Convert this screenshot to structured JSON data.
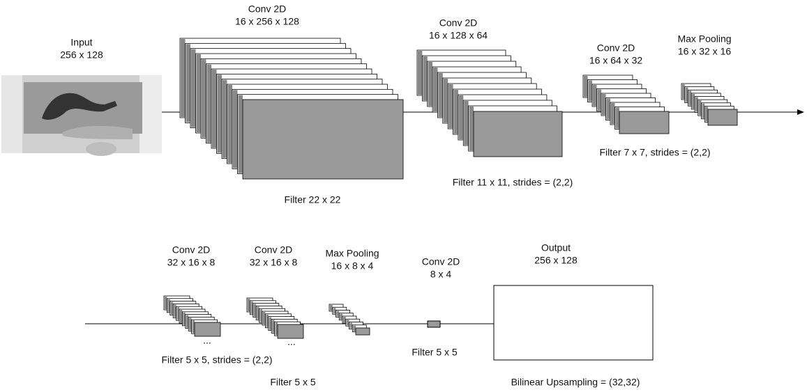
{
  "top_row": [
    {
      "title": "Input",
      "shape": "256 x 128"
    },
    {
      "title": "Conv 2D",
      "shape": "16 x 256 x 128",
      "filter": "Filter 22 x 22"
    },
    {
      "title": "Conv 2D",
      "shape": "16 x 128 x 64",
      "filter": "Filter 11 x 11, strides = (2,2)"
    },
    {
      "title": "Conv 2D",
      "shape": "16 x 64 x 32",
      "filter": "Filter 7 x 7, strides = (2,2)"
    },
    {
      "title": "Max Pooling",
      "shape": "16 x 32 x 16"
    }
  ],
  "bottom_row": [
    {
      "title": "Conv 2D",
      "shape": "32 x 16 x 8",
      "ellipsis": "...",
      "filter": "Filter 5 x 5, strides = (2,2)"
    },
    {
      "title": "Conv 2D",
      "shape": "32 x 16 x 8",
      "ellipsis": "...",
      "filter": "Filter 5 x 5"
    },
    {
      "title": "Max Pooling",
      "shape": "16 x 8 x 4"
    },
    {
      "title": "Conv 2D",
      "shape": "8 x 4",
      "filter": "Filter 5 x 5"
    },
    {
      "title": "Output",
      "shape": "256 x 128",
      "filter": "Bilinear Upsampling = (32,32)"
    }
  ]
}
